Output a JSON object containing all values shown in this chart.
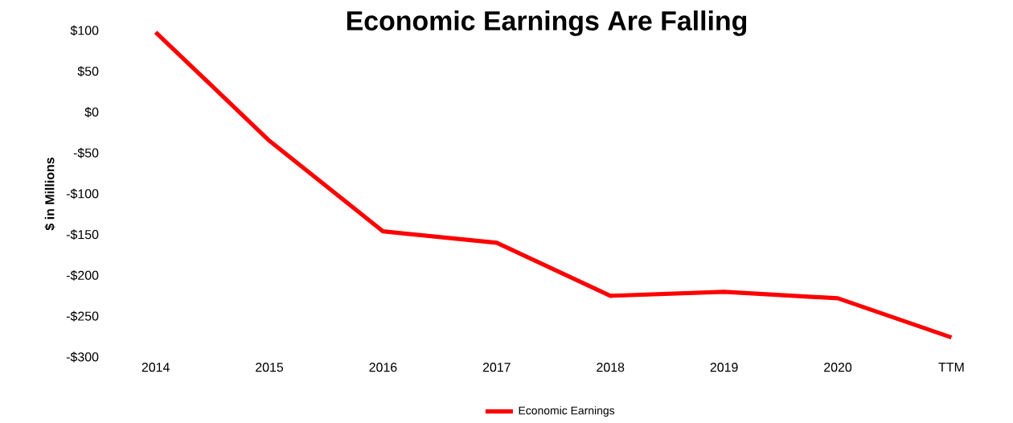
{
  "chart_data": {
    "type": "line",
    "title": "Economic Earnings Are Falling",
    "ylabel": "$ in Millions",
    "categories": [
      "2014",
      "2015",
      "2016",
      "2017",
      "2018",
      "2019",
      "2020",
      "TTM"
    ],
    "series": [
      {
        "name": "Economic Earnings",
        "color": "#ff0000",
        "values": [
          98,
          -35,
          -146,
          -160,
          -225,
          -220,
          -228,
          -276
        ]
      }
    ],
    "ylim": [
      -300,
      100
    ],
    "yticks": [
      {
        "value": 100,
        "label": "$100"
      },
      {
        "value": 50,
        "label": "$50"
      },
      {
        "value": 0,
        "label": "$0"
      },
      {
        "value": -50,
        "label": "-$50"
      },
      {
        "value": -100,
        "label": "-$100"
      },
      {
        "value": -150,
        "label": "-$150"
      },
      {
        "value": -200,
        "label": "-$200"
      },
      {
        "value": -250,
        "label": "-$250"
      },
      {
        "value": -300,
        "label": "-$300"
      }
    ],
    "legend": "bottom",
    "marker": "none",
    "line_style": "solid",
    "grid": false
  }
}
